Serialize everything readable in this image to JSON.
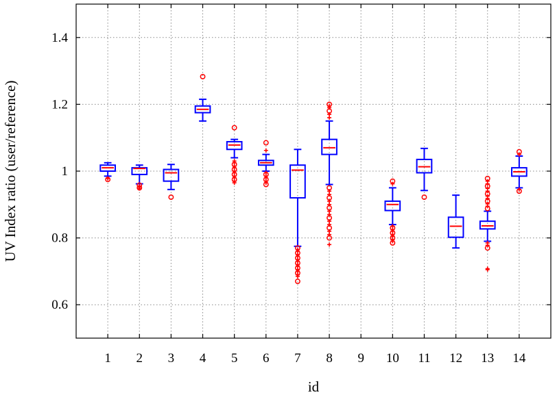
{
  "chart_data": {
    "type": "boxplot",
    "title": "",
    "xlabel": "id",
    "ylabel": "UV Index ratio (user/reference)",
    "ylim": [
      0.5,
      1.5
    ],
    "yticks": [
      0.6,
      0.8,
      1.0,
      1.2,
      1.4
    ],
    "ytick_labels": [
      "0.6",
      "0.8",
      "1",
      "1.2",
      "1.4"
    ],
    "categories": [
      "1",
      "2",
      "3",
      "4",
      "5",
      "6",
      "7",
      "8",
      "9",
      "10",
      "11",
      "12",
      "13",
      "14"
    ],
    "grid": true,
    "colors": {
      "box": "#0000ff",
      "median": "#ff0000",
      "outlier": "#ff0000",
      "grid": "#888888"
    },
    "boxes": [
      {
        "id": "1",
        "whisker_low": 0.985,
        "q1": 1.0,
        "median": 1.01,
        "q3": 1.018,
        "whisker_high": 1.025,
        "outliers": [
          0.975,
          0.978
        ]
      },
      {
        "id": "2",
        "whisker_low": 0.962,
        "q1": 0.99,
        "median": 1.008,
        "q3": 1.01,
        "whisker_high": 1.018,
        "outliers": [
          0.95,
          0.953,
          0.955,
          0.958,
          0.948
        ]
      },
      {
        "id": "3",
        "whisker_low": 0.945,
        "q1": 0.97,
        "median": 0.995,
        "q3": 1.005,
        "whisker_high": 1.02,
        "outliers": [
          0.922
        ]
      },
      {
        "id": "4",
        "whisker_low": 1.15,
        "q1": 1.175,
        "median": 1.185,
        "q3": 1.195,
        "whisker_high": 1.215,
        "outliers": [
          1.283
        ]
      },
      {
        "id": "5",
        "whisker_low": 1.04,
        "q1": 1.065,
        "median": 1.078,
        "q3": 1.088,
        "whisker_high": 1.095,
        "outliers": [
          1.13,
          1.03,
          1.025,
          1.02,
          1.015,
          1.01,
          1.005,
          1.0,
          0.995,
          0.99,
          0.985,
          0.98,
          0.975,
          0.97,
          0.965
        ]
      },
      {
        "id": "6",
        "whisker_low": 1.0,
        "q1": 1.018,
        "median": 1.025,
        "q3": 1.032,
        "whisker_high": 1.05,
        "outliers": [
          1.085,
          1.062,
          0.995,
          0.99,
          0.985,
          0.98,
          0.975,
          0.97,
          0.965,
          0.96
        ]
      },
      {
        "id": "7",
        "whisker_low": 0.775,
        "q1": 0.92,
        "median": 1.003,
        "q3": 1.018,
        "whisker_high": 1.065,
        "outliers": [
          0.77,
          0.765,
          0.76,
          0.755,
          0.75,
          0.745,
          0.74,
          0.735,
          0.73,
          0.725,
          0.72,
          0.715,
          0.71,
          0.705,
          0.7,
          0.695,
          0.69,
          0.685,
          0.67
        ]
      },
      {
        "id": "8",
        "whisker_low": 0.96,
        "q1": 1.05,
        "median": 1.07,
        "q3": 1.095,
        "whisker_high": 1.15,
        "outliers": [
          1.2,
          1.195,
          1.19,
          1.18,
          1.17,
          1.16,
          0.95,
          0.94,
          0.93,
          0.92,
          0.91,
          0.9,
          0.89,
          0.88,
          0.87,
          0.86,
          0.85,
          0.84,
          0.83,
          0.82,
          0.81,
          0.8,
          0.78
        ]
      },
      {
        "id": "9"
      },
      {
        "id": "10",
        "whisker_low": 0.84,
        "q1": 0.882,
        "median": 0.9,
        "q3": 0.91,
        "whisker_high": 0.95,
        "outliers": [
          0.97,
          0.962,
          0.835,
          0.83,
          0.825,
          0.82,
          0.815,
          0.81,
          0.805,
          0.8,
          0.795,
          0.79,
          0.785
        ]
      },
      {
        "id": "11",
        "whisker_low": 0.942,
        "q1": 0.995,
        "median": 1.013,
        "q3": 1.035,
        "whisker_high": 1.068,
        "outliers": [
          0.922
        ]
      },
      {
        "id": "12",
        "whisker_low": 0.77,
        "q1": 0.802,
        "median": 0.835,
        "q3": 0.862,
        "whisker_high": 0.928,
        "outliers": []
      },
      {
        "id": "13",
        "whisker_low": 0.79,
        "q1": 0.827,
        "median": 0.836,
        "q3": 0.85,
        "whisker_high": 0.88,
        "outliers": [
          0.978,
          0.97,
          0.962,
          0.955,
          0.948,
          0.94,
          0.932,
          0.925,
          0.918,
          0.91,
          0.902,
          0.895,
          0.888,
          0.785,
          0.778,
          0.77,
          0.708,
          0.705
        ]
      },
      {
        "id": "14",
        "whisker_low": 0.95,
        "q1": 0.985,
        "median": 0.998,
        "q3": 1.01,
        "whisker_high": 1.045,
        "outliers": [
          1.058,
          1.05,
          0.945,
          0.94
        ]
      }
    ]
  }
}
